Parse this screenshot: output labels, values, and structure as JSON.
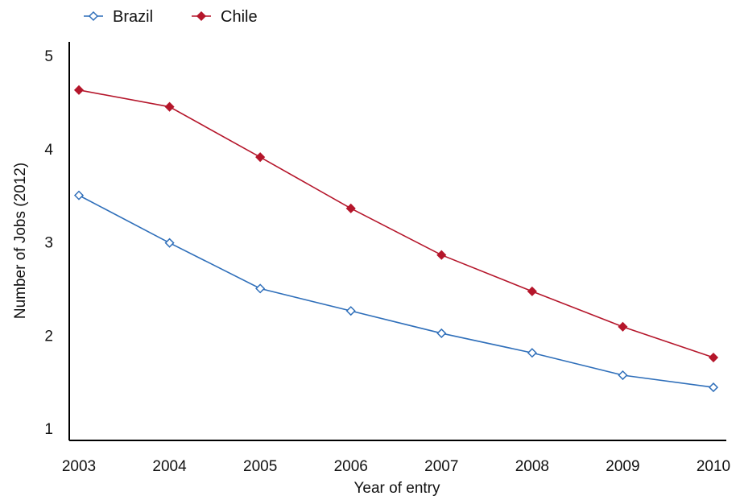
{
  "chart_data": {
    "type": "line",
    "x": [
      2003,
      2004,
      2005,
      2006,
      2007,
      2008,
      2009,
      2010
    ],
    "series": [
      {
        "name": "Brazil",
        "color": "#2f6fba",
        "marker": "hollow-diamond",
        "values": [
          3.5,
          2.99,
          2.5,
          2.26,
          2.02,
          1.81,
          1.57,
          1.44
        ]
      },
      {
        "name": "Chile",
        "color": "#b5162b",
        "marker": "filled-diamond",
        "values": [
          4.63,
          4.45,
          3.91,
          3.36,
          2.86,
          2.47,
          2.09,
          1.76
        ]
      }
    ],
    "xlabel": "Year of entry",
    "ylabel": "Number of Jobs (2012)",
    "xlim": [
      2003,
      2010
    ],
    "ylim": [
      1,
      5
    ],
    "yticks": [
      1,
      2,
      3,
      4,
      5
    ],
    "xticks": [
      2003,
      2004,
      2005,
      2006,
      2007,
      2008,
      2009,
      2010
    ],
    "grid": false,
    "legend_position": "top-left"
  }
}
